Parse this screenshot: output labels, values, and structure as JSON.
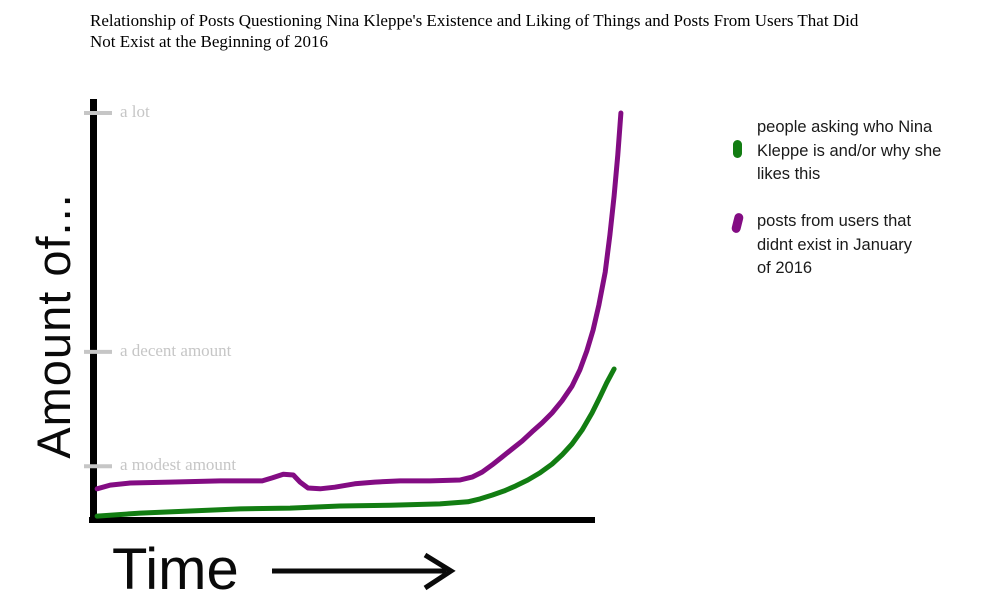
{
  "title_lines": [
    "Relationship of Posts Questioning Nina Kleppe's Existence and Liking of Things and Posts From Users That Did",
    "Not Exist at the Beginning of 2016"
  ],
  "chart_data": {
    "type": "line",
    "title": "Relationship of Posts Questioning Nina Kleppe's Existence and Liking of Things and Posts From Users That Did Not Exist at the Beginning of 2016",
    "xlabel": "Time",
    "ylabel": "Amount of...",
    "x_axis": {
      "label": "Time",
      "ticks": [],
      "note": "no numeric ticks; arrow indicates increasing time"
    },
    "y_axis": {
      "label": "Amount of...",
      "range": [
        0,
        100
      ],
      "ticks": [
        {
          "label": "a lot",
          "y": 96.9
        },
        {
          "label": "a decent amount",
          "y": 39.9
        },
        {
          "label": "a modest amount",
          "y": 12.6
        }
      ]
    },
    "grid": false,
    "legend_position": "right",
    "series": [
      {
        "id": "questioning-posts",
        "name": "people asking who Nina Kleppe is and/or why she likes this",
        "color": "#127d12",
        "points": [
          [
            0.2,
            0.7
          ],
          [
            8.4,
            1.4
          ],
          [
            17.9,
            1.9
          ],
          [
            27.4,
            2.4
          ],
          [
            36.9,
            2.6
          ],
          [
            46.4,
            3.1
          ],
          [
            55.9,
            3.3
          ],
          [
            65.4,
            3.6
          ],
          [
            70.7,
            4.1
          ],
          [
            73.0,
            4.8
          ],
          [
            75.3,
            5.7
          ],
          [
            77.6,
            6.7
          ],
          [
            79.8,
            7.9
          ],
          [
            82.1,
            9.3
          ],
          [
            84.4,
            11.0
          ],
          [
            86.7,
            13.1
          ],
          [
            88.6,
            15.3
          ],
          [
            90.5,
            17.9
          ],
          [
            92.4,
            21.2
          ],
          [
            94.3,
            25.3
          ],
          [
            95.8,
            29.1
          ],
          [
            97.1,
            32.5
          ],
          [
            98.5,
            35.8
          ]
        ]
      },
      {
        "id": "nonexistent-users-posts",
        "name": "posts from users that didnt exist in January of 2016",
        "color": "#830c83",
        "points": [
          [
            0.2,
            7.2
          ],
          [
            2.7,
            8.1
          ],
          [
            6.5,
            8.6
          ],
          [
            14.1,
            8.8
          ],
          [
            23.6,
            9.1
          ],
          [
            31.6,
            9.1
          ],
          [
            33.5,
            9.8
          ],
          [
            35.6,
            10.7
          ],
          [
            37.5,
            10.5
          ],
          [
            38.8,
            8.8
          ],
          [
            40.3,
            7.4
          ],
          [
            42.6,
            7.2
          ],
          [
            45.4,
            7.6
          ],
          [
            49.2,
            8.4
          ],
          [
            53.0,
            8.8
          ],
          [
            57.8,
            9.1
          ],
          [
            63.5,
            9.1
          ],
          [
            69.2,
            9.3
          ],
          [
            71.5,
            10.0
          ],
          [
            73.4,
            11.2
          ],
          [
            75.3,
            12.9
          ],
          [
            77.2,
            14.8
          ],
          [
            79.1,
            16.7
          ],
          [
            81.0,
            18.6
          ],
          [
            82.9,
            20.8
          ],
          [
            84.8,
            22.9
          ],
          [
            86.7,
            25.3
          ],
          [
            88.6,
            28.2
          ],
          [
            90.5,
            31.7
          ],
          [
            92.0,
            35.6
          ],
          [
            93.3,
            40.1
          ],
          [
            94.5,
            45.1
          ],
          [
            95.6,
            51.1
          ],
          [
            96.8,
            58.9
          ],
          [
            97.7,
            67.8
          ],
          [
            98.5,
            77.1
          ],
          [
            99.2,
            86.9
          ],
          [
            99.8,
            96.9
          ]
        ]
      }
    ]
  },
  "legend": {
    "items": [
      {
        "label_lines": [
          "people asking who Nina",
          "Kleppe is and/or why she",
          "likes this"
        ],
        "color": "#127d12"
      },
      {
        "label_lines": [
          "posts from users that",
          "didnt exist in January",
          "of 2016"
        ],
        "color": "#830c83"
      }
    ]
  },
  "colors": {
    "green": "#127d12",
    "purple": "#830c83",
    "axis": "#000000",
    "tick": "#c6c6c6",
    "tick_label": "#c6c6c6",
    "text": "#1a1a1a"
  }
}
